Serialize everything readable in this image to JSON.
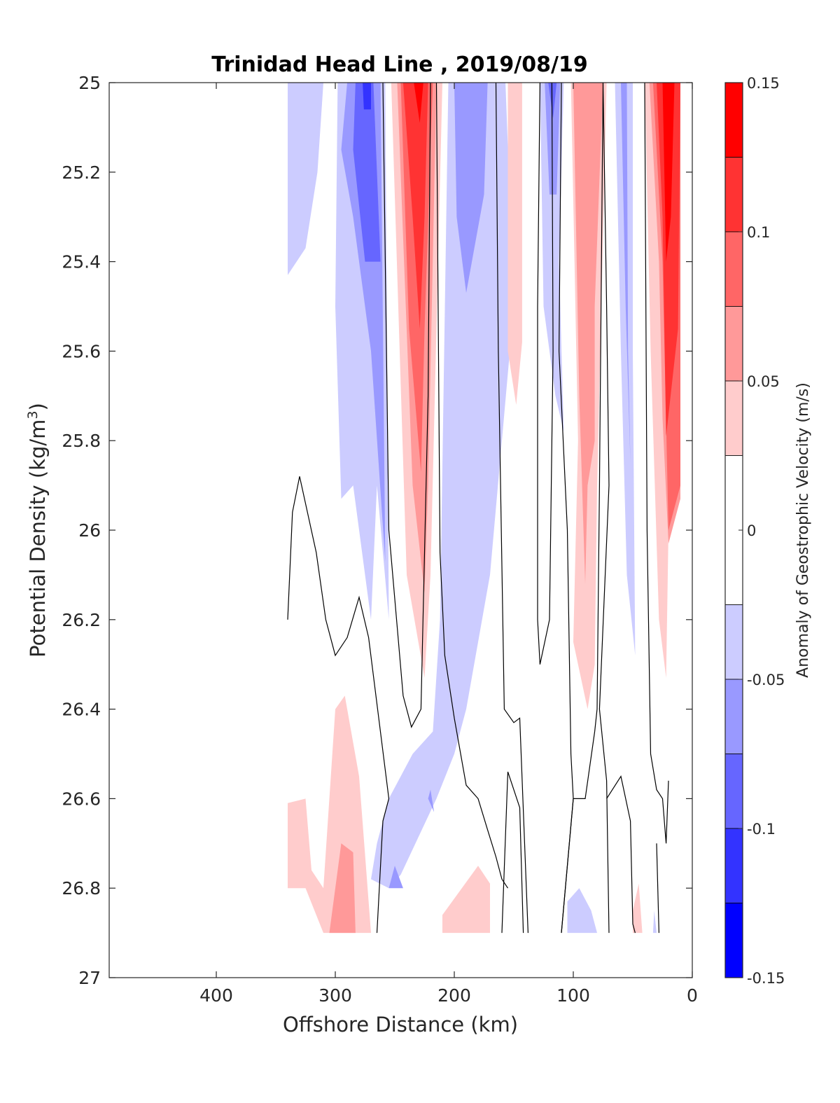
{
  "chart_data": {
    "type": "heatmap",
    "subtype": "filled-contour",
    "title": "Trinidad Head Line , 2019/08/19",
    "xlabel": "Offshore Distance (km)",
    "ylabel_main": "Potential Density (kg/m",
    "ylabel_sup": "3",
    "ylabel_close": ")",
    "colorbar_label": "Anomaly of Geostrophic Velocity (m/s)",
    "xlim": [
      490,
      0
    ],
    "x_reversed": true,
    "ylim": [
      25,
      27
    ],
    "y_reversed": true,
    "xticks": [
      400,
      300,
      200,
      100,
      0
    ],
    "xtick_labels": [
      "400",
      "300",
      "200",
      "100",
      "0"
    ],
    "yticks": [
      25,
      25.2,
      25.4,
      25.6,
      25.8,
      26,
      26.2,
      26.4,
      26.6,
      26.8,
      27
    ],
    "ytick_labels": [
      "25",
      "25.2",
      "25.4",
      "25.6",
      "25.8",
      "26",
      "26.2",
      "26.4",
      "26.6",
      "26.8",
      "27"
    ],
    "colorbar": {
      "range": [
        -0.15,
        0.15
      ],
      "tick_values": [
        0.15,
        0.1,
        0.05,
        0,
        -0.05,
        -0.1,
        -0.15
      ],
      "tick_labels": [
        "0.15",
        "0.1",
        "0.05",
        "0",
        "-0.05",
        "-0.1",
        "-0.15"
      ],
      "levels": [
        {
          "min": 0.125,
          "max": 0.15,
          "color": "#ff0000"
        },
        {
          "min": 0.1,
          "max": 0.125,
          "color": "#ff3333"
        },
        {
          "min": 0.075,
          "max": 0.1,
          "color": "#ff6666"
        },
        {
          "min": 0.05,
          "max": 0.075,
          "color": "#ff9999"
        },
        {
          "min": 0.025,
          "max": 0.05,
          "color": "#ffcccc"
        },
        {
          "min": -0.025,
          "max": 0.025,
          "color": "#ffffff"
        },
        {
          "min": -0.05,
          "max": -0.025,
          "color": "#ccccff"
        },
        {
          "min": -0.075,
          "max": -0.05,
          "color": "#9999ff"
        },
        {
          "min": -0.1,
          "max": -0.075,
          "color": "#6666ff"
        },
        {
          "min": -0.125,
          "max": -0.1,
          "color": "#3333ff"
        },
        {
          "min": -0.15,
          "max": -0.125,
          "color": "#0000ff"
        }
      ]
    },
    "zero_contour_color": "#000000",
    "regions": [
      {
        "color": "#ccccff",
        "points": [
          [
            340,
            25
          ],
          [
            310,
            25
          ],
          [
            315,
            25.2
          ],
          [
            325,
            25.37
          ],
          [
            340,
            25.43
          ]
        ]
      },
      {
        "color": "#ccccff",
        "points": [
          [
            298,
            25
          ],
          [
            258,
            25
          ],
          [
            255,
            26.2
          ],
          [
            248,
            26.45
          ],
          [
            255,
            26.2
          ],
          [
            265,
            25.9
          ],
          [
            270,
            26.2
          ],
          [
            285,
            25.9
          ],
          [
            295,
            25.93
          ],
          [
            300,
            25.5
          ]
        ]
      },
      {
        "color": "#9999ff",
        "points": [
          [
            290,
            25
          ],
          [
            262,
            25
          ],
          [
            258,
            26.07
          ],
          [
            270,
            25.6
          ],
          [
            285,
            25.3
          ],
          [
            295,
            25.15
          ]
        ]
      },
      {
        "color": "#6666ff",
        "points": [
          [
            283,
            25
          ],
          [
            268,
            25
          ],
          [
            262,
            25.4
          ],
          [
            275,
            25.4
          ],
          [
            285,
            25.15
          ]
        ]
      },
      {
        "color": "#3333ff",
        "points": [
          [
            277,
            25
          ],
          [
            270,
            25
          ],
          [
            270,
            25.06
          ],
          [
            276,
            25.06
          ]
        ]
      },
      {
        "color": "#ffcccc",
        "points": [
          [
            253,
            25
          ],
          [
            210,
            25
          ],
          [
            220,
            26.1
          ],
          [
            225,
            26.33
          ],
          [
            240,
            26.1
          ]
        ]
      },
      {
        "color": "#ff9999",
        "points": [
          [
            248,
            25
          ],
          [
            215,
            25
          ],
          [
            222,
            25.9
          ],
          [
            225,
            26.14
          ],
          [
            235,
            25.9
          ]
        ]
      },
      {
        "color": "#ff6666",
        "points": [
          [
            245,
            25
          ],
          [
            218,
            25
          ],
          [
            225,
            25.55
          ],
          [
            228,
            25.87
          ],
          [
            238,
            25.55
          ]
        ]
      },
      {
        "color": "#ff3333",
        "points": [
          [
            243,
            25
          ],
          [
            222,
            25
          ],
          [
            225,
            25.3
          ],
          [
            229,
            25.55
          ],
          [
            235,
            25.3
          ]
        ]
      },
      {
        "color": "#ff0000",
        "points": [
          [
            234,
            25
          ],
          [
            226,
            25
          ],
          [
            229,
            25.09
          ]
        ]
      },
      {
        "color": "#ccccff",
        "points": [
          [
            205,
            25
          ],
          [
            157,
            25
          ],
          [
            150,
            25.5
          ],
          [
            170,
            26.1
          ],
          [
            190,
            26.4
          ],
          [
            200,
            26.5
          ],
          [
            215,
            26.6
          ],
          [
            245,
            26.77
          ],
          [
            255,
            26.8
          ],
          [
            270,
            26.78
          ],
          [
            265,
            26.7
          ],
          [
            255,
            26.6
          ],
          [
            235,
            26.5
          ],
          [
            218,
            26.45
          ],
          [
            212,
            26.2
          ]
        ]
      },
      {
        "color": "#9999ff",
        "points": [
          [
            200,
            25
          ],
          [
            172,
            25
          ],
          [
            175,
            25.25
          ],
          [
            190,
            25.47
          ],
          [
            198,
            25.3
          ]
        ]
      },
      {
        "color": "#9999ff",
        "points": [
          [
            243,
            26.8
          ],
          [
            255,
            26.8
          ],
          [
            250,
            26.75
          ]
        ]
      },
      {
        "color": "#9999ff",
        "points": [
          [
            222,
            26.6
          ],
          [
            217,
            26.63
          ],
          [
            220,
            26.58
          ]
        ]
      },
      {
        "color": "#ffcccc",
        "points": [
          [
            155,
            25
          ],
          [
            143,
            25
          ],
          [
            143,
            25.58
          ],
          [
            148,
            25.72
          ],
          [
            155,
            25.6
          ]
        ]
      },
      {
        "color": "#ccccff",
        "points": [
          [
            128,
            25
          ],
          [
            108,
            25
          ],
          [
            112,
            25.4
          ],
          [
            108,
            25.78
          ],
          [
            115,
            25.7
          ],
          [
            125,
            25.5
          ]
        ]
      },
      {
        "color": "#9999ff",
        "points": [
          [
            124,
            25
          ],
          [
            111,
            25
          ],
          [
            114,
            25.25
          ],
          [
            120,
            25.25
          ]
        ]
      },
      {
        "color": "#6666ff",
        "points": [
          [
            121,
            25
          ],
          [
            114,
            25
          ],
          [
            117,
            25.08
          ]
        ]
      },
      {
        "color": "#ffcccc",
        "points": [
          [
            102,
            25
          ],
          [
            72,
            25
          ],
          [
            80,
            25.9
          ],
          [
            82,
            26.3
          ],
          [
            88,
            26.4
          ],
          [
            100,
            26.25
          ],
          [
            96,
            25.8
          ]
        ]
      },
      {
        "color": "#ff9999",
        "points": [
          [
            100,
            25
          ],
          [
            75,
            25
          ],
          [
            82,
            25.5
          ],
          [
            82,
            25.8
          ],
          [
            88,
            25.9
          ],
          [
            90,
            26.12
          ],
          [
            95,
            25.7
          ]
        ]
      },
      {
        "color": "#ccccff",
        "points": [
          [
            65,
            25
          ],
          [
            50,
            25
          ],
          [
            50,
            25.6
          ],
          [
            48,
            26.28
          ],
          [
            55,
            26.1
          ],
          [
            60,
            25.6
          ]
        ]
      },
      {
        "color": "#9999ff",
        "points": [
          [
            60,
            25
          ],
          [
            55,
            25
          ],
          [
            54,
            25.6
          ],
          [
            52,
            25.85
          ],
          [
            56,
            25.5
          ]
        ]
      },
      {
        "color": "#ffcccc",
        "points": [
          [
            40,
            25
          ],
          [
            10,
            25
          ],
          [
            10,
            25.9
          ],
          [
            20,
            26.0
          ],
          [
            22,
            26.33
          ],
          [
            28,
            26.2
          ],
          [
            35,
            25.6
          ]
        ]
      },
      {
        "color": "#ff9999",
        "points": [
          [
            36,
            25
          ],
          [
            10,
            25
          ],
          [
            10,
            25.93
          ],
          [
            20,
            26.03
          ],
          [
            25,
            25.75
          ],
          [
            28,
            25.4
          ]
        ]
      },
      {
        "color": "#ff6666",
        "points": [
          [
            33,
            25
          ],
          [
            10,
            25
          ],
          [
            10,
            25.9
          ],
          [
            20,
            26.0
          ],
          [
            25,
            25.4
          ]
        ]
      },
      {
        "color": "#ff3333",
        "points": [
          [
            30,
            25
          ],
          [
            10,
            25
          ],
          [
            12,
            25.55
          ],
          [
            22,
            25.79
          ],
          [
            25,
            25.3
          ]
        ]
      },
      {
        "color": "#ff0000",
        "points": [
          [
            25,
            25
          ],
          [
            15,
            25
          ],
          [
            18,
            25.3
          ],
          [
            22,
            25.4
          ]
        ]
      },
      {
        "color": "#ffcccc",
        "points": [
          [
            340,
            26.61
          ],
          [
            325,
            26.6
          ],
          [
            320,
            26.76
          ],
          [
            310,
            26.8
          ],
          [
            300,
            26.4
          ],
          [
            292,
            26.37
          ],
          [
            280,
            26.55
          ],
          [
            270,
            26.9
          ],
          [
            310,
            26.9
          ],
          [
            325,
            26.8
          ],
          [
            340,
            26.8
          ]
        ]
      },
      {
        "color": "#ff9999",
        "points": [
          [
            295,
            26.7
          ],
          [
            285,
            26.72
          ],
          [
            283,
            26.9
          ],
          [
            305,
            26.9
          ]
        ]
      },
      {
        "color": "#ffcccc",
        "points": [
          [
            210,
            26.86
          ],
          [
            180,
            26.75
          ],
          [
            170,
            26.79
          ],
          [
            170,
            26.9
          ],
          [
            210,
            26.9
          ]
        ]
      },
      {
        "color": "#ccccff",
        "points": [
          [
            105,
            26.83
          ],
          [
            95,
            26.8
          ],
          [
            85,
            26.85
          ],
          [
            80,
            26.9
          ],
          [
            105,
            26.9
          ]
        ]
      },
      {
        "color": "#ffcccc",
        "points": [
          [
            50,
            26.85
          ],
          [
            45,
            26.79
          ],
          [
            42,
            26.9
          ],
          [
            50,
            26.9
          ]
        ]
      },
      {
        "color": "#ccccff",
        "points": [
          [
            32,
            26.85
          ],
          [
            30,
            26.9
          ],
          [
            33,
            26.9
          ]
        ]
      }
    ],
    "zero_contours": [
      [
        [
          340,
          26.2
        ],
        [
          336,
          25.96
        ],
        [
          330,
          25.88
        ],
        [
          316,
          26.05
        ],
        [
          308,
          26.2
        ],
        [
          300,
          26.28
        ],
        [
          290,
          26.24
        ],
        [
          280,
          26.15
        ],
        [
          272,
          26.24
        ],
        [
          255,
          26.6
        ],
        [
          260,
          26.65
        ],
        [
          265,
          26.9
        ]
      ],
      [
        [
          260,
          25
        ],
        [
          255,
          26.0
        ],
        [
          243,
          26.37
        ],
        [
          236,
          26.44
        ],
        [
          228,
          26.4
        ],
        [
          222,
          25.7
        ],
        [
          220,
          25
        ]
      ],
      [
        [
          215,
          25
        ],
        [
          212,
          26.05
        ],
        [
          208,
          26.28
        ],
        [
          200,
          26.42
        ],
        [
          190,
          26.57
        ],
        [
          180,
          26.6
        ],
        [
          172,
          26.67
        ],
        [
          165,
          26.73
        ],
        [
          160,
          26.78
        ],
        [
          155,
          26.8
        ]
      ],
      [
        [
          160,
          26.9
        ],
        [
          155,
          26.54
        ],
        [
          145,
          26.62
        ],
        [
          142,
          26.9
        ]
      ],
      [
        [
          165,
          25
        ],
        [
          163,
          25.6
        ],
        [
          158,
          26.4
        ],
        [
          150,
          26.43
        ],
        [
          145,
          26.42
        ],
        [
          138,
          26.9
        ]
      ],
      [
        [
          128,
          25
        ],
        [
          130,
          25.5
        ],
        [
          130,
          26.2
        ],
        [
          128,
          26.3
        ],
        [
          120,
          26.2
        ],
        [
          117,
          25.6
        ],
        [
          118,
          25
        ]
      ],
      [
        [
          110,
          25
        ],
        [
          112,
          25.6
        ],
        [
          105,
          26.0
        ],
        [
          102,
          26.5
        ],
        [
          100,
          26.6
        ],
        [
          110,
          26.9
        ]
      ],
      [
        [
          75,
          25
        ],
        [
          78,
          25.9
        ],
        [
          80,
          26.4
        ],
        [
          82,
          26.45
        ],
        [
          90,
          26.6
        ],
        [
          100,
          26.6
        ],
        [
          110,
          26.9
        ]
      ],
      [
        [
          75,
          25
        ],
        [
          72,
          25.5
        ],
        [
          70,
          25.9
        ],
        [
          78,
          26.4
        ],
        [
          72,
          26.56
        ],
        [
          70,
          26.9
        ]
      ],
      [
        [
          72,
          26.6
        ],
        [
          60,
          26.55
        ],
        [
          52,
          26.65
        ],
        [
          50,
          26.88
        ],
        [
          48,
          26.9
        ]
      ],
      [
        [
          40,
          25
        ],
        [
          38,
          26.0
        ],
        [
          35,
          26.5
        ],
        [
          30,
          26.58
        ],
        [
          25,
          26.6
        ],
        [
          22,
          26.7
        ],
        [
          20,
          26.56
        ]
      ],
      [
        [
          30,
          26.7
        ],
        [
          28,
          26.9
        ]
      ]
    ]
  }
}
